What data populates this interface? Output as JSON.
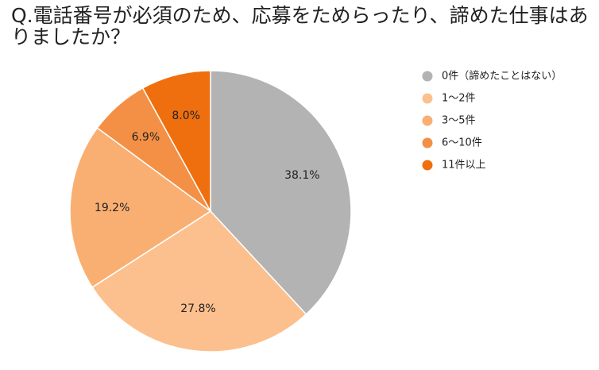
{
  "chart_data": {
    "type": "pie",
    "title": "Q.電話番号が必須のため、応募をためらったり、諦めた仕事はありましたか？",
    "categories": [
      "0件（諦めたことはない）",
      "1〜2件",
      "3〜5件",
      "6〜10件",
      "11件以上"
    ],
    "values": [
      38.1,
      27.8,
      19.2,
      6.9,
      8.0
    ],
    "value_labels": [
      "38.1%",
      "27.8%",
      "19.2%",
      "6.9%",
      "8.0%"
    ],
    "colors": [
      "#b3b3b3",
      "#fcc08e",
      "#f9af72",
      "#f39045",
      "#ef6f0e"
    ],
    "legend": "right"
  }
}
